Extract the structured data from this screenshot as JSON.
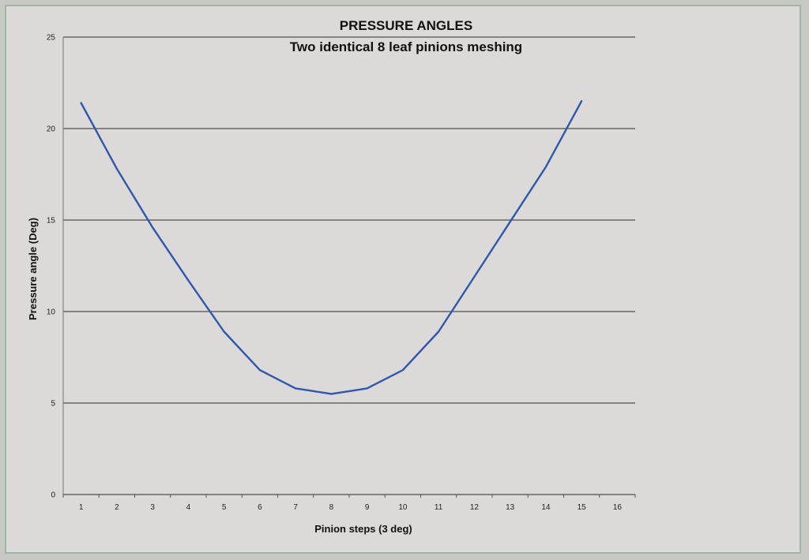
{
  "chart_data": {
    "type": "line",
    "title": "PRESSURE ANGLES",
    "subtitle": "Two identical 8 leaf pinions meshing",
    "xlabel": "Pinion steps (3 deg)",
    "ylabel": "Pressure angle (Deg)",
    "categories": [
      "1",
      "2",
      "3",
      "4",
      "5",
      "6",
      "7",
      "8",
      "9",
      "10",
      "11",
      "12",
      "13",
      "14",
      "15",
      "16"
    ],
    "yticks": [
      "0",
      "5",
      "10",
      "15",
      "20",
      "25"
    ],
    "ylim": [
      0,
      25
    ],
    "grid": "horizontal",
    "legend": "none",
    "series": [
      {
        "values": [
          21.4,
          17.8,
          14.6,
          11.7,
          8.9,
          6.8,
          5.8,
          5.5,
          5.8,
          6.8,
          8.9,
          11.9,
          14.9,
          17.9,
          21.5,
          null
        ],
        "color": "#3057b0"
      }
    ]
  },
  "colors": {
    "grid": "#2a2a2a",
    "line": "#3057b0",
    "background": "#dcdad8"
  }
}
